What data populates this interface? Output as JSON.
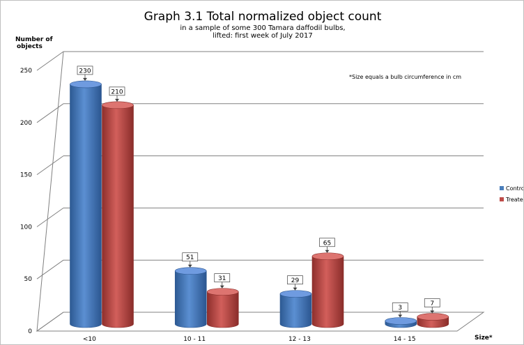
{
  "chart_data": {
    "type": "bar",
    "title": "Graph 3.1  Total normalized object count",
    "subtitle_lines": [
      "in a sample of some 300 Tamara daffodil bulbs,",
      "lifted: first week of July 2017"
    ],
    "ylabel_lines": [
      "Number of",
      "objects"
    ],
    "xlabel": "Size*",
    "note": "*Size equals a bulb circumference in cm",
    "categories": [
      "<10",
      "10 - 11",
      "12 - 13",
      "14 - 15"
    ],
    "ylim": [
      0,
      250
    ],
    "yticks": [
      0,
      50,
      100,
      150,
      200,
      250
    ],
    "grid": true,
    "legend_position": "right",
    "series": [
      {
        "name": "Control",
        "values": [
          230,
          51,
          29,
          3
        ],
        "color": "#4a7ebb"
      },
      {
        "name": "Treated",
        "values": [
          210,
          31,
          65,
          7
        ],
        "color": "#be4b48"
      }
    ]
  }
}
